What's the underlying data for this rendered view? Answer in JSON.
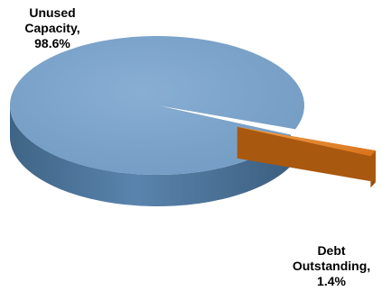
{
  "chart_data": {
    "type": "pie",
    "style": "3d",
    "slices": [
      {
        "label": "Unused Capacity",
        "value": 98.6,
        "color": "#7ea4c9"
      },
      {
        "label": "Debt Outstanding",
        "value": 1.4,
        "color": "#e07f1c"
      }
    ],
    "data_labels": [
      [
        "Unused",
        "Capacity,",
        "98.6%"
      ],
      [
        "Debt",
        "Outstanding,",
        "1.4%"
      ]
    ]
  }
}
